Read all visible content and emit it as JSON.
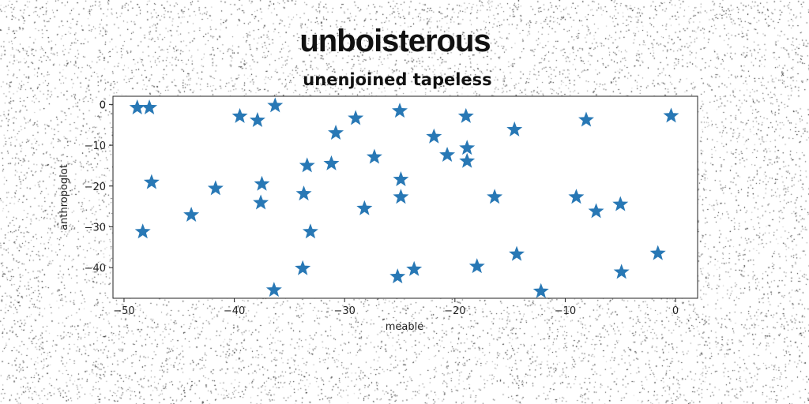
{
  "figure": {
    "suptitle": "unboisterous"
  },
  "colors": {
    "marker": "#2878b5",
    "axes": "#222222",
    "background": "#ffffff"
  },
  "chart_data": {
    "type": "scatter",
    "title": "unenjoined tapeless",
    "xlabel": "meable",
    "ylabel": "anthropoglot",
    "marker": "star",
    "grid": false,
    "xlim": [
      -51,
      2
    ],
    "ylim": [
      -47.5,
      2
    ],
    "xticks": [
      -50,
      -40,
      -30,
      -20,
      -10,
      0
    ],
    "yticks": [
      0,
      -10,
      -20,
      -30,
      -40
    ],
    "xtick_labels": [
      "−50",
      "−40",
      "−30",
      "−20",
      "−10",
      "0"
    ],
    "ytick_labels": [
      "0",
      "−10",
      "−20",
      "−30",
      "−40"
    ],
    "x": [
      -48.8,
      -47.7,
      -48.3,
      -47.5,
      -43.9,
      -41.7,
      -39.5,
      -37.9,
      -36.3,
      -37.5,
      -37.6,
      -36.4,
      -33.7,
      -33.4,
      -33.8,
      -33.1,
      -31.2,
      -30.8,
      -29.0,
      -28.2,
      -27.3,
      -25.2,
      -25.0,
      -24.9,
      -24.9,
      -23.7,
      -21.9,
      -20.7,
      -19.0,
      -18.9,
      -18.9,
      -18.0,
      -16.4,
      -14.6,
      -14.4,
      -12.2,
      -9.0,
      -8.1,
      -7.2,
      -5.0,
      -4.9,
      -1.6,
      -0.4
    ],
    "y": [
      -0.8,
      -0.8,
      -31.2,
      -19.1,
      -27.1,
      -20.6,
      -2.9,
      -3.9,
      -0.3,
      -19.5,
      -24.1,
      -45.5,
      -21.9,
      -15.0,
      -40.2,
      -31.2,
      -14.5,
      -7.0,
      -3.4,
      -25.5,
      -12.9,
      -42.2,
      -1.6,
      -18.4,
      -22.7,
      -40.4,
      -7.9,
      -12.4,
      -2.9,
      -10.7,
      -13.9,
      -39.7,
      -22.7,
      -6.2,
      -36.7,
      -45.8,
      -22.7,
      -3.8,
      -26.2,
      -24.5,
      -41.1,
      -36.5,
      -2.8
    ]
  }
}
